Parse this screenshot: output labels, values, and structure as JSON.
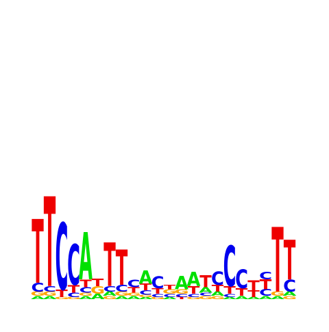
{
  "chart_data": {
    "type": "sequence-logo",
    "title": "",
    "xlabel": "",
    "ylabel": "",
    "alphabet": [
      "A",
      "C",
      "G",
      "T"
    ],
    "colors": {
      "A": "#00e000",
      "C": "#0000ee",
      "G": "#ffa500",
      "T": "#ee0000"
    },
    "ylim": [
      0,
      2
    ],
    "positions": [
      {
        "index": 1,
        "stack": [
          [
            "A",
            0.03
          ],
          [
            "G",
            0.04
          ],
          [
            "C",
            0.08
          ],
          [
            "T",
            0.58
          ]
        ]
      },
      {
        "index": 2,
        "stack": [
          [
            "A",
            0.03
          ],
          [
            "G",
            0.04
          ],
          [
            "C",
            0.05
          ],
          [
            "T",
            0.82
          ]
        ]
      },
      {
        "index": 3,
        "stack": [
          [
            "G",
            0.02
          ],
          [
            "T",
            0.07
          ],
          [
            "C",
            0.61
          ]
        ]
      },
      {
        "index": 4,
        "stack": [
          [
            "G",
            0.02
          ],
          [
            "C",
            0.04
          ],
          [
            "T",
            0.07
          ],
          [
            "C",
            0.37
          ]
        ]
      },
      {
        "index": 5,
        "stack": [
          [
            "A",
            0.03
          ],
          [
            "G",
            0.03
          ],
          [
            "C",
            0.05
          ],
          [
            "T",
            0.07
          ],
          [
            "A",
            0.43
          ]
        ]
      },
      {
        "index": 6,
        "stack": [
          [
            "A",
            0.05
          ],
          [
            "G",
            0.07
          ],
          [
            "T",
            0.07
          ]
        ]
      },
      {
        "index": 7,
        "stack": [
          [
            "G",
            0.03
          ],
          [
            "A",
            0.04
          ],
          [
            "C",
            0.05
          ],
          [
            "T",
            0.4
          ]
        ]
      },
      {
        "index": 8,
        "stack": [
          [
            "A",
            0.03
          ],
          [
            "G",
            0.04
          ],
          [
            "C",
            0.06
          ],
          [
            "T",
            0.32
          ]
        ]
      },
      {
        "index": 9,
        "stack": [
          [
            "A",
            0.03
          ],
          [
            "G",
            0.03
          ],
          [
            "T",
            0.05
          ],
          [
            "C",
            0.07
          ]
        ]
      },
      {
        "index": 10,
        "stack": [
          [
            "A",
            0.02
          ],
          [
            "G",
            0.02
          ],
          [
            "C",
            0.04
          ],
          [
            "T",
            0.06
          ],
          [
            "A",
            0.12
          ]
        ]
      },
      {
        "index": 11,
        "stack": [
          [
            "G",
            0.02
          ],
          [
            "C",
            0.03
          ],
          [
            "T",
            0.05
          ],
          [
            "C",
            0.11
          ]
        ]
      },
      {
        "index": 12,
        "stack": [
          [
            "A",
            0.02
          ],
          [
            "C",
            0.03
          ],
          [
            "G",
            0.04
          ],
          [
            "T",
            0.04
          ]
        ]
      },
      {
        "index": 13,
        "stack": [
          [
            "T",
            0.02
          ],
          [
            "C",
            0.03
          ],
          [
            "G",
            0.04
          ],
          [
            "A",
            0.12
          ]
        ]
      },
      {
        "index": 14,
        "stack": [
          [
            "G",
            0.02
          ],
          [
            "C",
            0.03
          ],
          [
            "T",
            0.07
          ],
          [
            "A",
            0.13
          ]
        ]
      },
      {
        "index": 15,
        "stack": [
          [
            "G",
            0.03
          ],
          [
            "C",
            0.03
          ],
          [
            "A",
            0.05
          ],
          [
            "T",
            0.11
          ]
        ]
      },
      {
        "index": 16,
        "stack": [
          [
            "G",
            0.03
          ],
          [
            "A",
            0.04
          ],
          [
            "T",
            0.06
          ],
          [
            "C",
            0.12
          ]
        ]
      },
      {
        "index": 17,
        "stack": [
          [
            "A",
            0.02
          ],
          [
            "C",
            0.03
          ],
          [
            "T",
            0.07
          ],
          [
            "C",
            0.37
          ]
        ]
      },
      {
        "index": 18,
        "stack": [
          [
            "A",
            0.03
          ],
          [
            "T",
            0.07
          ],
          [
            "C",
            0.17
          ]
        ]
      },
      {
        "index": 19,
        "stack": [
          [
            "A",
            0.02
          ],
          [
            "T",
            0.06
          ],
          [
            "T",
            0.09
          ]
        ]
      },
      {
        "index": 20,
        "stack": [
          [
            "A",
            0.03
          ],
          [
            "C",
            0.06
          ],
          [
            "T",
            0.09
          ],
          [
            "C",
            0.07
          ]
        ]
      },
      {
        "index": 21,
        "stack": [
          [
            "A",
            0.03
          ],
          [
            "G",
            0.04
          ],
          [
            "T",
            0.59
          ]
        ]
      },
      {
        "index": 22,
        "stack": [
          [
            "G",
            0.03
          ],
          [
            "A",
            0.04
          ],
          [
            "C",
            0.11
          ],
          [
            "T",
            0.36
          ]
        ]
      }
    ]
  }
}
